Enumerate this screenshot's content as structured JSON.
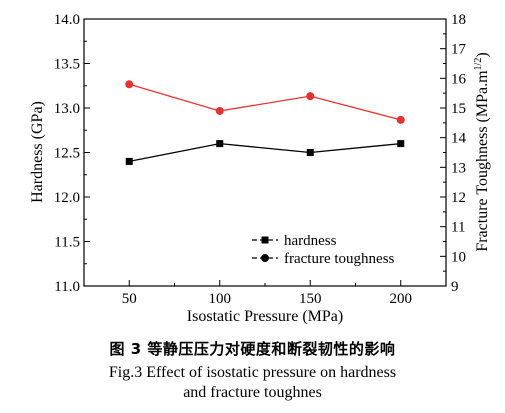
{
  "chart_data": {
    "type": "line",
    "x_label": "Isostatic Pressure (MPa)",
    "y_label_left": "Hardness (GPa)",
    "y_label_right_main": "Fracture Toughness (MPa.m",
    "y_label_right_sup": "1/2",
    "y_label_right_close": ")",
    "x": [
      50,
      100,
      150,
      200
    ],
    "x_ticks": [
      "50",
      "100",
      "150",
      "200"
    ],
    "x_range": [
      25,
      225
    ],
    "y_left_range": [
      11.0,
      14.0
    ],
    "y_left_ticks": [
      "11.0",
      "11.5",
      "12.0",
      "12.5",
      "13.0",
      "13.5",
      "14.0"
    ],
    "y_right_range": [
      9,
      18
    ],
    "y_right_ticks": [
      "9",
      "10",
      "11",
      "12",
      "13",
      "14",
      "15",
      "16",
      "17",
      "18"
    ],
    "series": [
      {
        "name": "hardness",
        "axis": "left",
        "marker": "square",
        "color": "#000000",
        "values": [
          12.4,
          12.6,
          12.5,
          12.6
        ]
      },
      {
        "name": "fracture toughness",
        "axis": "right",
        "marker": "circle",
        "color": "#e8322f",
        "values": [
          15.8,
          14.9,
          15.4,
          14.6
        ]
      }
    ],
    "legend_position": "bottom-right",
    "grid": false
  },
  "caption": {
    "zh": "图 3   等静压压力对硬度和断裂韧性的影响",
    "en_line1": "Fig.3 Effect of isostatic pressure on hardness",
    "en_line2": "and fracture toughnes"
  }
}
